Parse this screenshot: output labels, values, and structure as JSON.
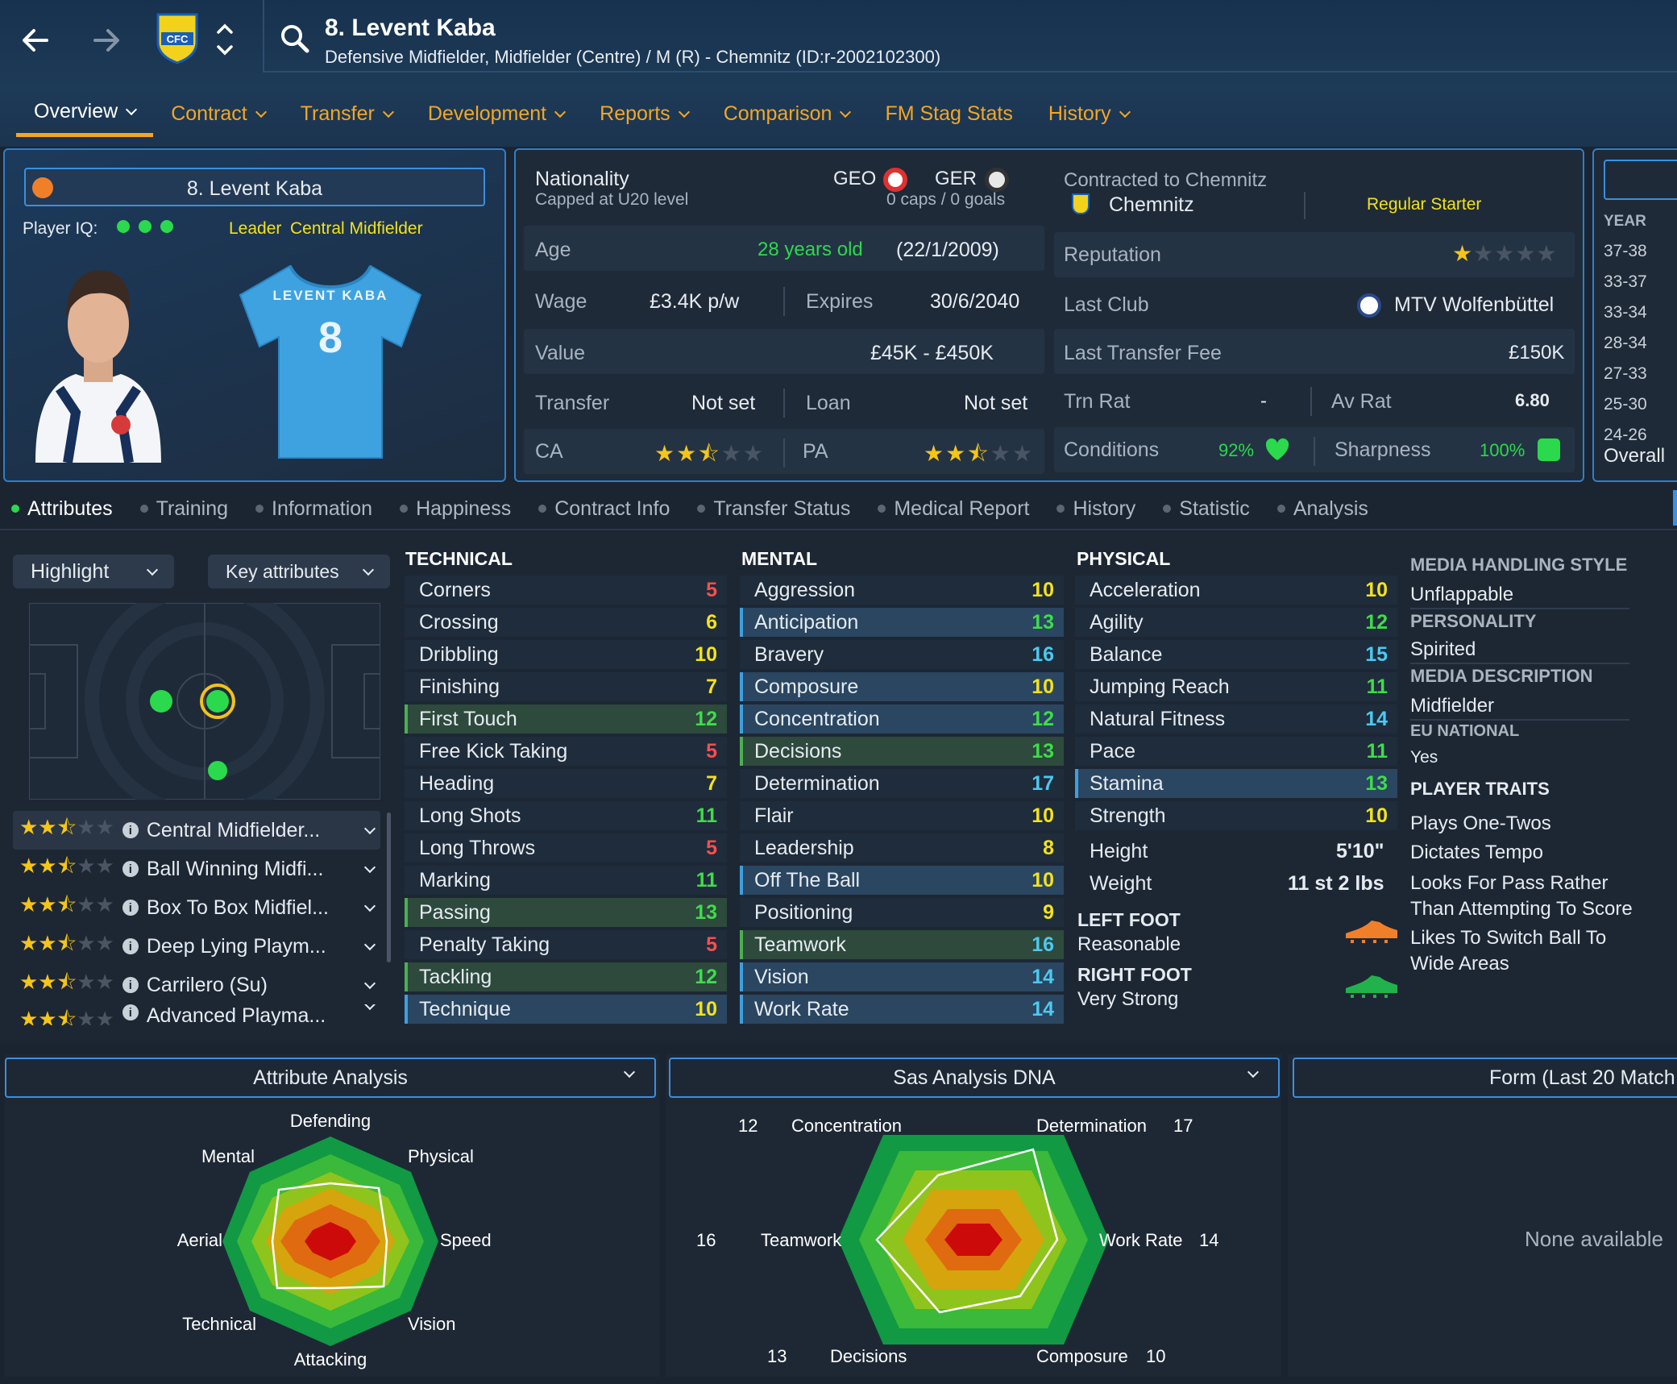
{
  "header": {
    "title": "8. Levent Kaba",
    "subtitle": "Defensive Midfielder, Midfielder (Centre) / M (R) - Chemnitz (ID:r-2002102300)",
    "club_badge_text": "CFC"
  },
  "nav": {
    "tabs": [
      "Overview",
      "Contract",
      "Transfer",
      "Development",
      "Reports",
      "Comparison",
      "FM Stag Stats",
      "History"
    ]
  },
  "player_card": {
    "name": "8. Levent Kaba",
    "iq_label": "Player IQ:",
    "role_tag_1": "Leader",
    "role_tag_2": "Central Midfielder",
    "shirt_name": "LEVENT KABA",
    "shirt_number": "8"
  },
  "info": {
    "nationality_label": "Nationality",
    "nationality_sub": "Capped at U20 level",
    "nat1": "GEO",
    "nat2": "GER",
    "caps": "0 caps / 0 goals",
    "age_label": "Age",
    "age_value": "28 years old",
    "dob": "(22/1/2009)",
    "wage_label": "Wage",
    "wage_value": "£3.4K p/w",
    "expires_label": "Expires",
    "expires_value": "30/6/2040",
    "value_label": "Value",
    "value_value": "£45K - £450K",
    "transfer_label": "Transfer",
    "transfer_value": "Not set",
    "loan_label": "Loan",
    "loan_value": "Not set",
    "ca_label": "CA",
    "pa_label": "PA",
    "ca_stars": 2.5,
    "pa_stars": 2.5
  },
  "contract": {
    "contracted_label": "Contracted to Chemnitz",
    "club": "Chemnitz",
    "status": "Regular Starter",
    "reputation_label": "Reputation",
    "reputation_stars": 1,
    "last_club_label": "Last Club",
    "last_club": "MTV Wolfenbüttel",
    "last_fee_label": "Last Transfer Fee",
    "last_fee": "£150K",
    "trn_rat_label": "Trn Rat",
    "trn_rat": "-",
    "av_rat_label": "Av Rat",
    "av_rat": "6.80",
    "conditions_label": "Conditions",
    "conditions": "92%",
    "sharpness_label": "Sharpness",
    "sharpness": "100%"
  },
  "history_side": {
    "header": "YEAR",
    "years": [
      "37-38",
      "33-37",
      "33-34",
      "28-34",
      "27-33",
      "25-30",
      "24-26"
    ],
    "overall": "Overall"
  },
  "sub_tabs": [
    "Attributes",
    "Training",
    "Information",
    "Happiness",
    "Contract Info",
    "Transfer Status",
    "Medical Report",
    "History",
    "Statistic",
    "Analysis"
  ],
  "left_panel": {
    "highlight": "Highlight",
    "key_attributes": "Key attributes",
    "roles": [
      {
        "name": "Central Midfielder...",
        "stars": 2.5
      },
      {
        "name": "Ball Winning Midfi...",
        "stars": 2.5
      },
      {
        "name": "Box To Box Midfiel...",
        "stars": 2.5
      },
      {
        "name": "Deep Lying Playm...",
        "stars": 2.5
      },
      {
        "name": "Carrilero (Su)",
        "stars": 2.5
      },
      {
        "name": "Advanced Playma...",
        "stars": 2.5
      }
    ]
  },
  "technical": {
    "title": "TECHNICAL",
    "items": [
      {
        "name": "Corners",
        "value": "5",
        "hl": ""
      },
      {
        "name": "Crossing",
        "value": "6",
        "hl": ""
      },
      {
        "name": "Dribbling",
        "value": "10",
        "hl": ""
      },
      {
        "name": "Finishing",
        "value": "7",
        "hl": ""
      },
      {
        "name": "First Touch",
        "value": "12",
        "hl": "green"
      },
      {
        "name": "Free Kick Taking",
        "value": "5",
        "hl": ""
      },
      {
        "name": "Heading",
        "value": "7",
        "hl": ""
      },
      {
        "name": "Long Shots",
        "value": "11",
        "hl": ""
      },
      {
        "name": "Long Throws",
        "value": "5",
        "hl": ""
      },
      {
        "name": "Marking",
        "value": "11",
        "hl": ""
      },
      {
        "name": "Passing",
        "value": "13",
        "hl": "green"
      },
      {
        "name": "Penalty Taking",
        "value": "5",
        "hl": ""
      },
      {
        "name": "Tackling",
        "value": "12",
        "hl": "green"
      },
      {
        "name": "Technique",
        "value": "10",
        "hl": "blue"
      }
    ]
  },
  "mental": {
    "title": "MENTAL",
    "items": [
      {
        "name": "Aggression",
        "value": "10",
        "hl": ""
      },
      {
        "name": "Anticipation",
        "value": "13",
        "hl": "blue"
      },
      {
        "name": "Bravery",
        "value": "16",
        "hl": ""
      },
      {
        "name": "Composure",
        "value": "10",
        "hl": "blue"
      },
      {
        "name": "Concentration",
        "value": "12",
        "hl": "blue"
      },
      {
        "name": "Decisions",
        "value": "13",
        "hl": "green"
      },
      {
        "name": "Determination",
        "value": "17",
        "hl": ""
      },
      {
        "name": "Flair",
        "value": "10",
        "hl": ""
      },
      {
        "name": "Leadership",
        "value": "8",
        "hl": ""
      },
      {
        "name": "Off The Ball",
        "value": "10",
        "hl": "blue"
      },
      {
        "name": "Positioning",
        "value": "9",
        "hl": ""
      },
      {
        "name": "Teamwork",
        "value": "16",
        "hl": "green"
      },
      {
        "name": "Vision",
        "value": "14",
        "hl": "blue"
      },
      {
        "name": "Work Rate",
        "value": "14",
        "hl": "blue"
      }
    ]
  },
  "physical": {
    "title": "PHYSICAL",
    "items": [
      {
        "name": "Acceleration",
        "value": "10",
        "hl": ""
      },
      {
        "name": "Agility",
        "value": "12",
        "hl": ""
      },
      {
        "name": "Balance",
        "value": "15",
        "hl": ""
      },
      {
        "name": "Jumping Reach",
        "value": "11",
        "hl": ""
      },
      {
        "name": "Natural Fitness",
        "value": "14",
        "hl": ""
      },
      {
        "name": "Pace",
        "value": "11",
        "hl": ""
      },
      {
        "name": "Stamina",
        "value": "13",
        "hl": "blue"
      },
      {
        "name": "Strength",
        "value": "10",
        "hl": ""
      }
    ],
    "height_label": "Height",
    "height": "5'10\"",
    "weight_label": "Weight",
    "weight": "11 st 2 lbs",
    "left_foot_label": "LEFT FOOT",
    "left_foot": "Reasonable",
    "right_foot_label": "RIGHT FOOT",
    "right_foot": "Very Strong"
  },
  "personality": {
    "media_style_label": "MEDIA HANDLING STYLE",
    "media_style": "Unflappable",
    "personality_label": "PERSONALITY",
    "personality": "Spirited",
    "media_desc_label": "MEDIA DESCRIPTION",
    "media_desc": "Midfielder",
    "eu_label": "EU NATIONAL",
    "eu": "Yes",
    "traits_label": "PLAYER TRAITS",
    "trait1": "Plays One-Twos",
    "trait2": "Dictates Tempo",
    "trait3a": "Looks For Pass Rather",
    "trait3b": "Than Attempting To Score",
    "trait4a": "Likes To Switch Ball To",
    "trait4b": "Wide Areas"
  },
  "bottom": {
    "attr_analysis": "Attribute Analysis",
    "sas_dna": "Sas Analysis DNA",
    "form": "Form (Last 20 Match",
    "none_available": "None available",
    "radar1_labels": {
      "defending": "Defending",
      "physical": "Physical",
      "speed": "Speed",
      "vision": "Vision",
      "attacking": "Attacking",
      "technical": "Technical",
      "aerial": "Aerial",
      "mental": "Mental"
    },
    "dna": {
      "concentration": "Concentration",
      "concentration_v": "12",
      "determination": "Determination",
      "determination_v": "17",
      "work_rate": "Work Rate",
      "work_rate_v": "14",
      "composure": "Composure",
      "composure_v": "10",
      "decisions": "Decisions",
      "decisions_v": "13",
      "teamwork": "Teamwork",
      "teamwork_v": "16"
    }
  }
}
